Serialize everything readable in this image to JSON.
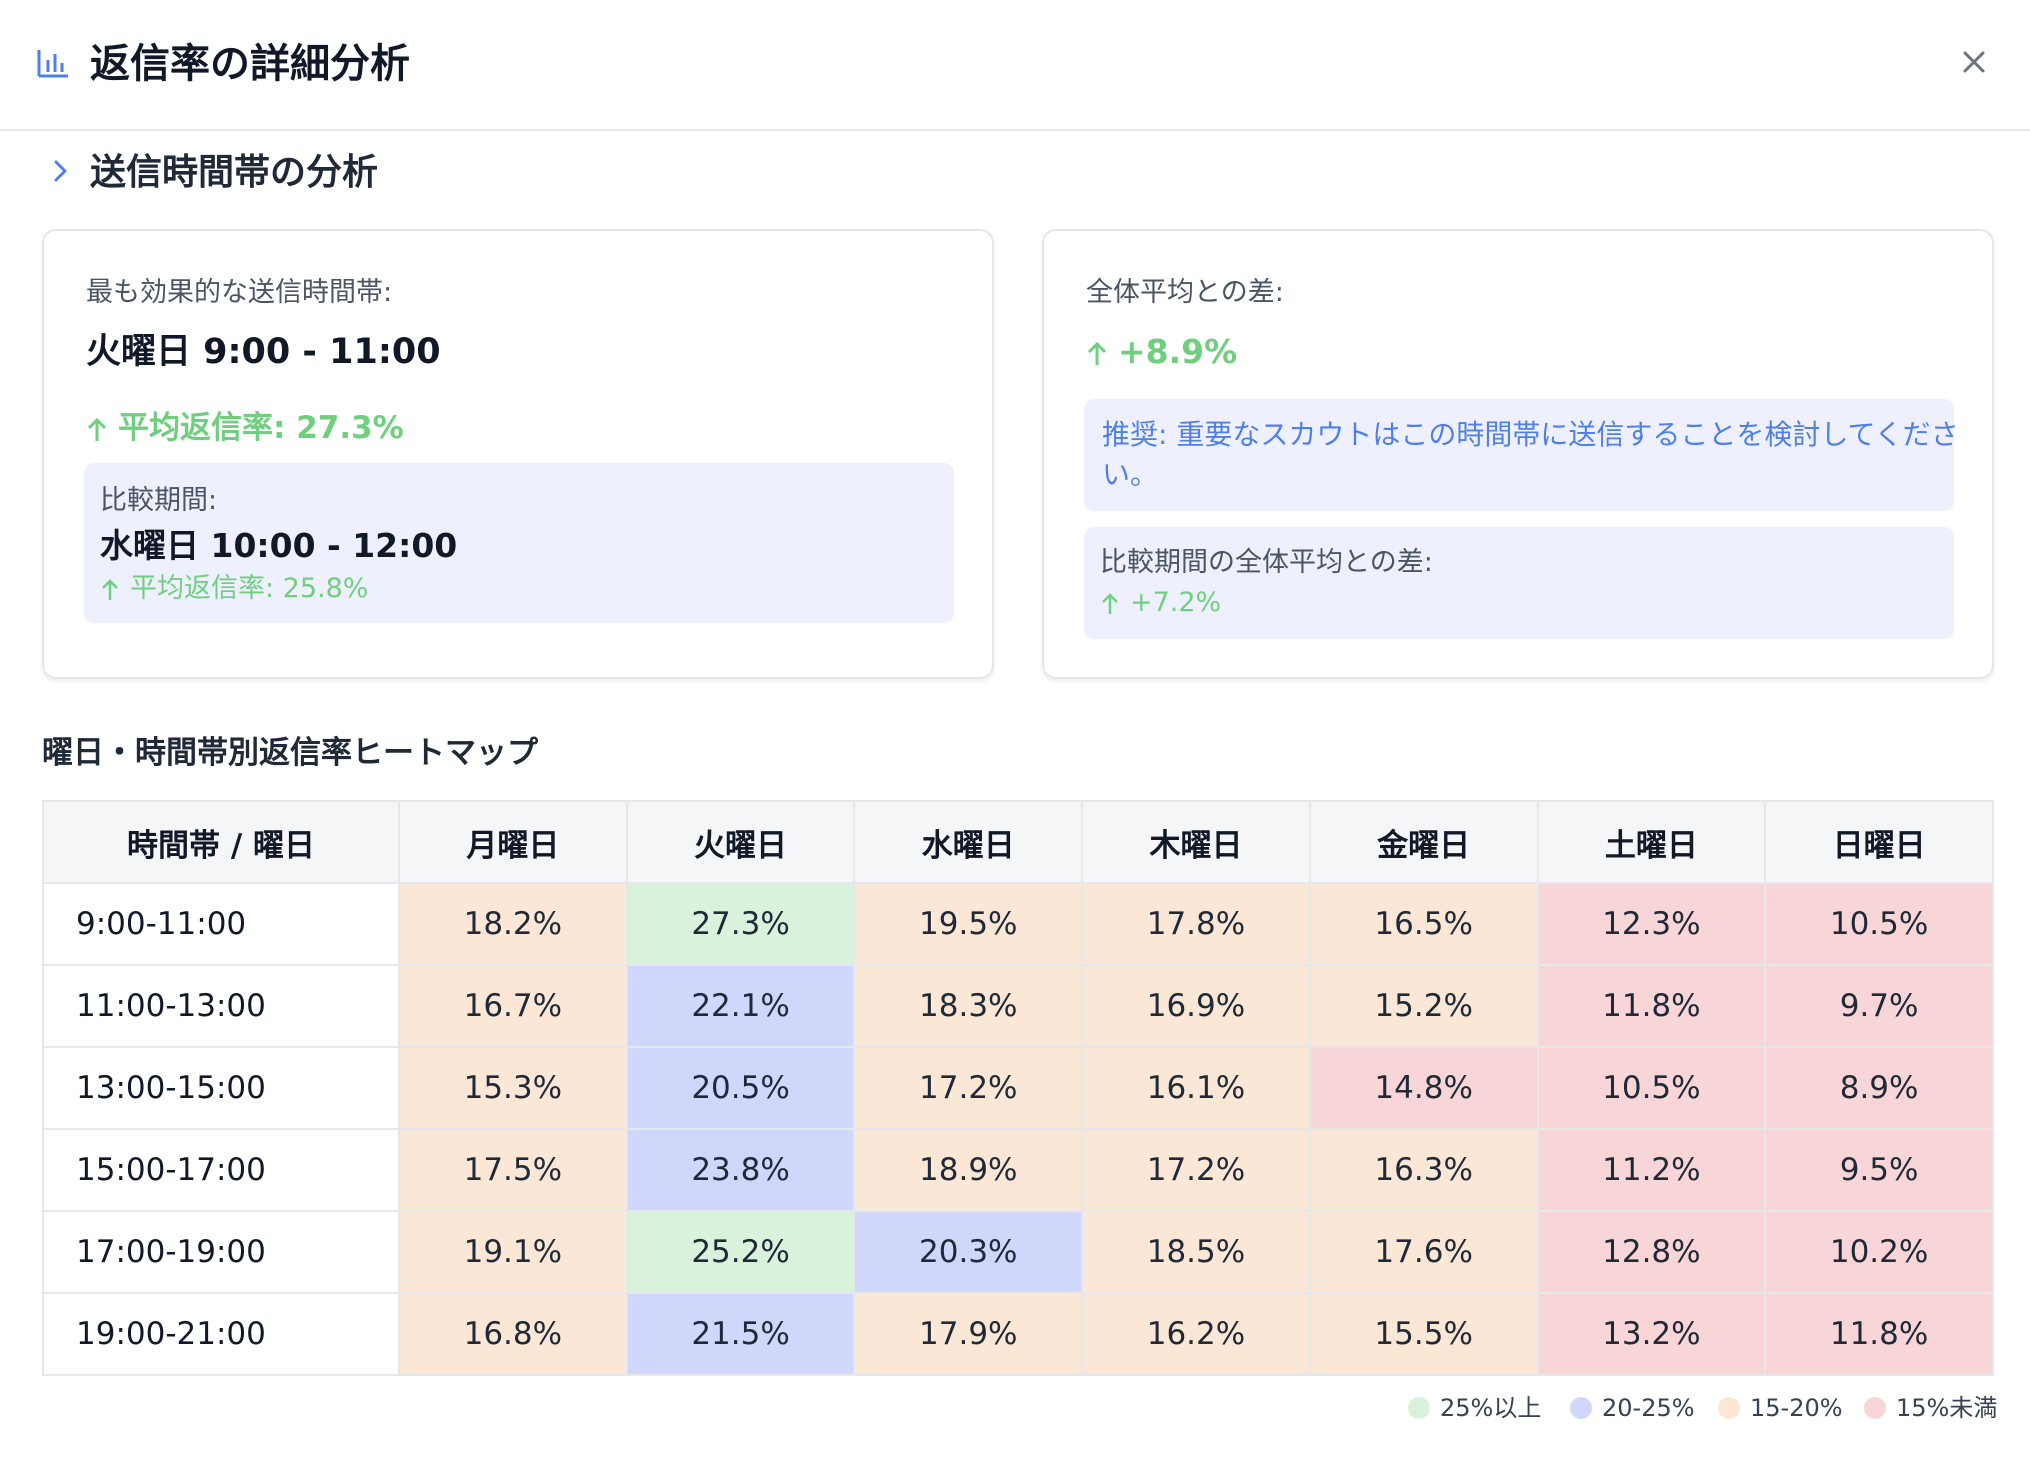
{
  "dialog": {
    "title": "返信率の詳細分析",
    "icon": "bar-chart-icon",
    "close_icon": "close-icon"
  },
  "section": {
    "title": "送信時間帯の分析",
    "icon": "chevron-right-icon"
  },
  "best_card": {
    "label": "最も効果的な送信時間帯:",
    "value": "火曜日 9:00 - 11:00",
    "rate": "平均返信率: 27.3%",
    "compare": {
      "label": "比較期間:",
      "value": "水曜日 10:00 - 12:00",
      "rate": "平均返信率: 25.8%"
    }
  },
  "diff_card": {
    "label": "全体平均との差:",
    "value": "+8.9%",
    "recommendation": "推奨: 重要なスカウトはこの時間帯に送信することを検討してください。",
    "compare": {
      "label": "比較期間の全体平均との差:",
      "value": "+7.2%"
    }
  },
  "heatmap": {
    "title": "曜日・時間帯別返信率ヒートマップ",
    "header": [
      "時間帯 / 曜日",
      "月曜日",
      "火曜日",
      "水曜日",
      "木曜日",
      "金曜日",
      "土曜日",
      "日曜日"
    ],
    "rows": [
      {
        "time": "9:00-11:00",
        "values": [
          "18.2%",
          "27.3%",
          "19.5%",
          "17.8%",
          "16.5%",
          "12.3%",
          "10.5%"
        ]
      },
      {
        "time": "11:00-13:00",
        "values": [
          "16.7%",
          "22.1%",
          "18.3%",
          "16.9%",
          "15.2%",
          "11.8%",
          "9.7%"
        ]
      },
      {
        "time": "13:00-15:00",
        "values": [
          "15.3%",
          "20.5%",
          "17.2%",
          "16.1%",
          "14.8%",
          "10.5%",
          "8.9%"
        ]
      },
      {
        "time": "15:00-17:00",
        "values": [
          "17.5%",
          "23.8%",
          "18.9%",
          "17.2%",
          "16.3%",
          "11.2%",
          "9.5%"
        ]
      },
      {
        "time": "17:00-19:00",
        "values": [
          "19.1%",
          "25.2%",
          "20.3%",
          "18.5%",
          "17.6%",
          "12.8%",
          "10.2%"
        ]
      },
      {
        "time": "19:00-21:00",
        "values": [
          "16.8%",
          "21.5%",
          "17.9%",
          "16.2%",
          "15.5%",
          "13.2%",
          "11.8%"
        ]
      }
    ],
    "legend": [
      {
        "label": "25%以上",
        "color": "#d9f2dc"
      },
      {
        "label": "20-25%",
        "color": "#cfd8fb"
      },
      {
        "label": "15-20%",
        "color": "#fbe7d6"
      },
      {
        "label": "15%未満",
        "color": "#f8d6d8"
      }
    ]
  },
  "colors": {
    "positive": "#6fcf7e",
    "accent": "#4f7fe8",
    "panel": "#eef1fd"
  }
}
